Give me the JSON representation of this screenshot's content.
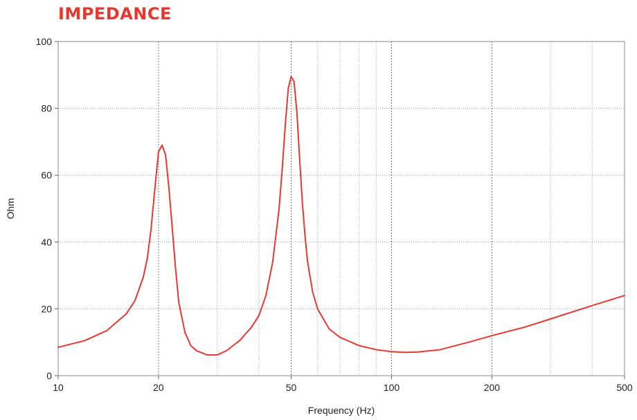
{
  "chart_data": {
    "type": "line",
    "title": "IMPEDANCE",
    "xlabel": "Frequency (Hz)",
    "ylabel": "Ohm",
    "x_scale": "log",
    "xlim": [
      10,
      500
    ],
    "ylim": [
      0,
      100
    ],
    "x_ticks": [
      10,
      20,
      50,
      100,
      200,
      500
    ],
    "x_tick_labels": [
      "10",
      "20",
      "50",
      "100",
      "200",
      "500"
    ],
    "x_minor_gridlines": [
      30,
      40,
      60,
      70,
      80,
      90,
      300,
      400
    ],
    "y_ticks": [
      0,
      20,
      40,
      60,
      80,
      100
    ],
    "y_tick_labels": [
      "0",
      "20",
      "40",
      "60",
      "80",
      "100"
    ],
    "grid": true,
    "series": [
      {
        "color": "#e8382e",
        "x": [
          10,
          12,
          14,
          16,
          17,
          18,
          18.5,
          19,
          19.5,
          20,
          20.5,
          21,
          21.5,
          22,
          22.5,
          23,
          24,
          25,
          26,
          28,
          30,
          32,
          35,
          38,
          40,
          42,
          44,
          46,
          47,
          48,
          49,
          50,
          51,
          52,
          53,
          54,
          55,
          56,
          58,
          60,
          65,
          70,
          80,
          90,
          100,
          110,
          120,
          140,
          170,
          200,
          250,
          300,
          400,
          500
        ],
        "y": [
          8.5,
          10.5,
          13.5,
          18.5,
          22.5,
          29.5,
          35,
          44,
          56,
          67,
          69,
          66,
          56,
          44,
          32,
          22,
          13,
          9,
          7.5,
          6.2,
          6.2,
          7.5,
          10.5,
          14.5,
          18,
          24,
          34,
          50,
          62,
          75,
          86,
          89.5,
          88,
          79,
          65,
          52,
          42,
          34,
          25,
          20,
          14,
          11.5,
          9,
          7.8,
          7.2,
          7.0,
          7.1,
          7.8,
          10,
          12,
          14.5,
          17,
          21,
          24
        ]
      }
    ]
  }
}
